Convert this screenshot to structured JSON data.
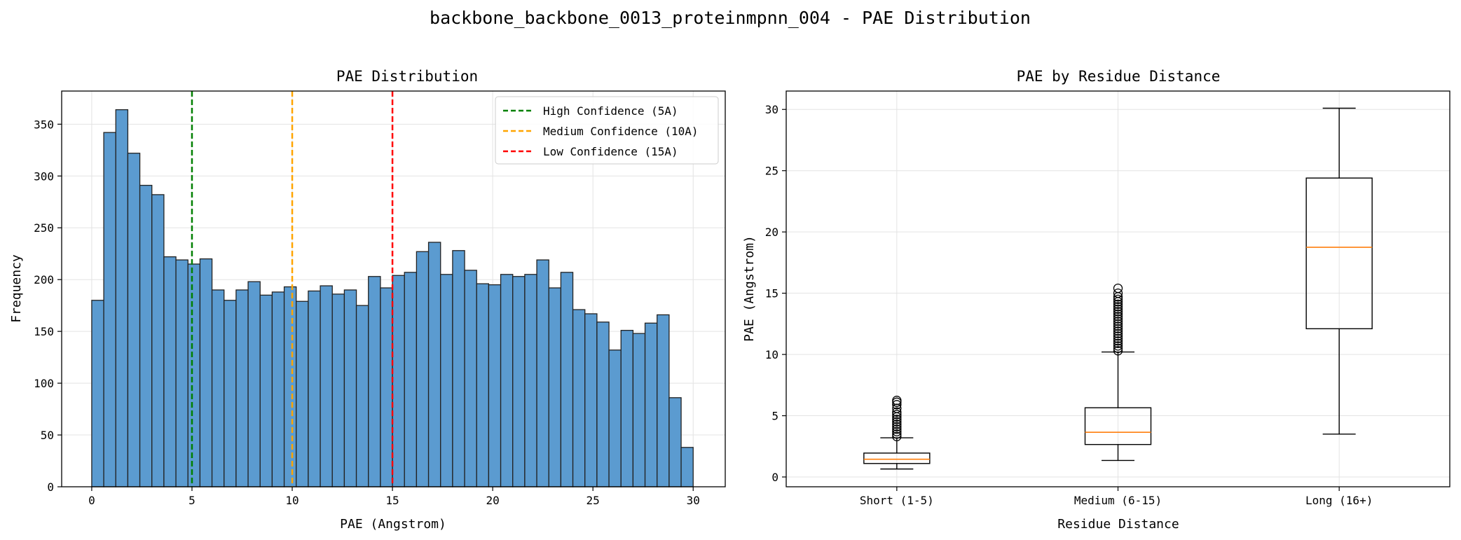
{
  "figure": {
    "suptitle": "backbone_backbone_0013_proteinmpnn_004 - PAE Distribution"
  },
  "chart_data": [
    {
      "type": "bar",
      "kind": "histogram",
      "title": "PAE Distribution",
      "xlabel": "PAE (Angstrom)",
      "ylabel": "Frequency",
      "xlim": [
        -1.5,
        31.6
      ],
      "ylim": [
        0,
        382
      ],
      "xticks": [
        0,
        5,
        10,
        15,
        20,
        25,
        30
      ],
      "yticks": [
        0,
        50,
        100,
        150,
        200,
        250,
        300,
        350
      ],
      "grid": true,
      "bar_color": "#5b9bd0",
      "edge_color": "#222222",
      "bin_start": 0,
      "bin_width": 0.6,
      "values": [
        180,
        342,
        364,
        322,
        291,
        282,
        222,
        219,
        215,
        220,
        190,
        180,
        190,
        198,
        185,
        188,
        193,
        179,
        189,
        194,
        186,
        190,
        175,
        203,
        192,
        204,
        207,
        227,
        236,
        205,
        228,
        209,
        196,
        195,
        205,
        203,
        205,
        219,
        192,
        207,
        171,
        167,
        159,
        132,
        151,
        148,
        158,
        166,
        86,
        38
      ],
      "reference_lines": [
        {
          "x": 5,
          "label": "High Confidence (5A)",
          "color": "#008000"
        },
        {
          "x": 10,
          "label": "Medium Confidence (10A)",
          "color": "#ffa500"
        },
        {
          "x": 15,
          "label": "Low Confidence (15A)",
          "color": "#ff0000"
        }
      ],
      "legend_position": "top-right"
    },
    {
      "type": "box",
      "title": "PAE by Residue Distance",
      "xlabel": "Residue Distance",
      "ylabel": "PAE (Angstrom)",
      "ylim": [
        -0.8,
        31.5
      ],
      "yticks": [
        0,
        5,
        10,
        15,
        20,
        25,
        30
      ],
      "grid": true,
      "median_color": "#ff7f0e",
      "categories": [
        "Short (1-5)",
        "Medium (6-15)",
        "Long (16+)"
      ],
      "boxes": [
        {
          "q1": 1.1,
          "median": 1.45,
          "q3": 1.95,
          "whisker_low": 0.65,
          "whisker_high": 3.2,
          "outliers": [
            3.3,
            3.5,
            3.7,
            3.9,
            4.1,
            4.3,
            4.5,
            4.7,
            4.9,
            5.1,
            5.3,
            5.6,
            5.9,
            6.1,
            6.25
          ]
        },
        {
          "q1": 2.65,
          "median": 3.65,
          "q3": 5.65,
          "whisker_low": 1.35,
          "whisker_high": 10.2,
          "outliers": [
            10.3,
            10.5,
            10.7,
            10.9,
            11.1,
            11.3,
            11.5,
            11.7,
            11.9,
            12.1,
            12.3,
            12.5,
            12.7,
            12.9,
            13.1,
            13.3,
            13.5,
            13.7,
            13.9,
            14.1,
            14.3,
            14.5,
            14.7,
            15.0,
            15.4
          ]
        },
        {
          "q1": 12.1,
          "median": 18.75,
          "q3": 24.4,
          "whisker_low": 3.5,
          "whisker_high": 30.1,
          "outliers": []
        }
      ]
    }
  ]
}
